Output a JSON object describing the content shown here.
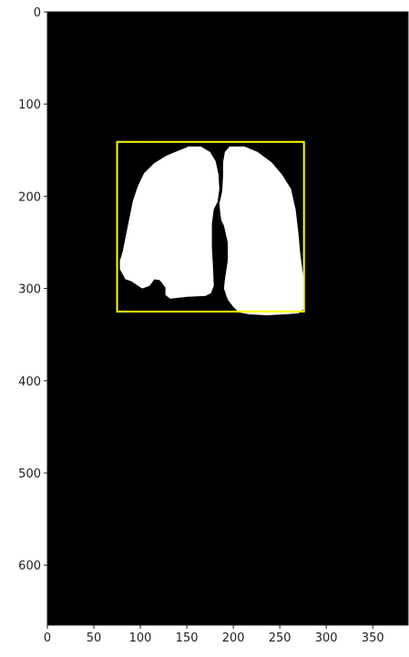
{
  "chart_data": {
    "type": "image",
    "title": "",
    "xlabel": "",
    "ylabel": "",
    "image_shape": {
      "rows": 665,
      "cols": 388
    },
    "xlim": [
      0,
      388
    ],
    "ylim": [
      665,
      0
    ],
    "y_inverted": true,
    "xticks": [
      0,
      50,
      100,
      150,
      200,
      250,
      300,
      350
    ],
    "yticks": [
      0,
      100,
      200,
      300,
      400,
      500,
      600
    ],
    "xtick_labels": [
      "0",
      "50",
      "100",
      "150",
      "200",
      "250",
      "300",
      "350"
    ],
    "ytick_labels": [
      "0",
      "100",
      "200",
      "300",
      "400",
      "500",
      "600"
    ],
    "background_color": "#000000",
    "mask_color": "#ffffff",
    "mask_regions": [
      {
        "name": "left lung",
        "outline": [
          [
            152,
            146
          ],
          [
            165,
            146
          ],
          [
            175,
            152
          ],
          [
            181,
            162
          ],
          [
            184,
            176
          ],
          [
            185,
            192
          ],
          [
            183,
            206
          ],
          [
            179,
            214
          ],
          [
            177,
            230
          ],
          [
            177,
            255
          ],
          [
            178,
            275
          ],
          [
            179,
            297
          ],
          [
            176,
            305
          ],
          [
            170,
            308
          ],
          [
            150,
            309
          ],
          [
            132,
            311
          ],
          [
            127,
            307
          ],
          [
            127,
            299
          ],
          [
            121,
            291
          ],
          [
            115,
            290
          ],
          [
            110,
            297
          ],
          [
            102,
            300
          ],
          [
            96,
            296
          ],
          [
            90,
            292
          ],
          [
            84,
            290
          ],
          [
            78,
            279
          ],
          [
            78,
            270
          ],
          [
            81,
            260
          ],
          [
            84,
            245
          ],
          [
            88,
            225
          ],
          [
            92,
            205
          ],
          [
            97,
            190
          ],
          [
            104,
            175
          ],
          [
            115,
            164
          ],
          [
            128,
            156
          ],
          [
            140,
            151
          ]
        ]
      },
      {
        "name": "right lung",
        "outline": [
          [
            196,
            146
          ],
          [
            212,
            146
          ],
          [
            226,
            152
          ],
          [
            241,
            163
          ],
          [
            252,
            176
          ],
          [
            262,
            192
          ],
          [
            267,
            214
          ],
          [
            270,
            240
          ],
          [
            272,
            262
          ],
          [
            275,
            285
          ],
          [
            276,
            305
          ],
          [
            276,
            322
          ],
          [
            270,
            327
          ],
          [
            256,
            328
          ],
          [
            236,
            329
          ],
          [
            217,
            328
          ],
          [
            206,
            326
          ],
          [
            200,
            320
          ],
          [
            194,
            312
          ],
          [
            190,
            300
          ],
          [
            191,
            290
          ],
          [
            194,
            270
          ],
          [
            194,
            250
          ],
          [
            190,
            232
          ],
          [
            187,
            226
          ],
          [
            186,
            218
          ],
          [
            185,
            208
          ],
          [
            188,
            195
          ],
          [
            189,
            178
          ],
          [
            189,
            163
          ],
          [
            191,
            152
          ]
        ]
      }
    ],
    "bounding_box": {
      "x0": 75,
      "y0": 141,
      "x1": 276,
      "y1": 325,
      "color": "#ffff00"
    }
  }
}
